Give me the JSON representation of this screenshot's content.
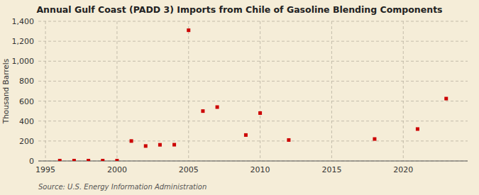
{
  "chart_data": {
    "type": "scatter",
    "title": "Annual Gulf Coast (PADD 3) Imports from Chile of Gasoline Blending Components",
    "ylabel": "Thousand Barrels",
    "source": "Source: U.S. Energy Information Administration",
    "x": [
      1996,
      1997,
      1998,
      1999,
      2000,
      2001,
      2002,
      2003,
      2004,
      2005,
      2006,
      2007,
      2009,
      2010,
      2012,
      2018,
      2021,
      2023
    ],
    "values": [
      3,
      3,
      3,
      3,
      3,
      200,
      150,
      162,
      163,
      1310,
      500,
      540,
      260,
      480,
      210,
      220,
      320,
      625
    ],
    "xlim": [
      1994.5,
      2024.5
    ],
    "ylim": [
      0,
      1400
    ],
    "xticks": [
      1995,
      2000,
      2005,
      2010,
      2015,
      2020
    ],
    "yticks": [
      0,
      200,
      400,
      600,
      800,
      {
        "value": 1000,
        "label": "1,000"
      },
      {
        "value": 1200,
        "label": "1,200"
      },
      {
        "value": 1400,
        "label": "1,400"
      }
    ],
    "color": "#cc0000",
    "marker": "square",
    "grid": true
  }
}
